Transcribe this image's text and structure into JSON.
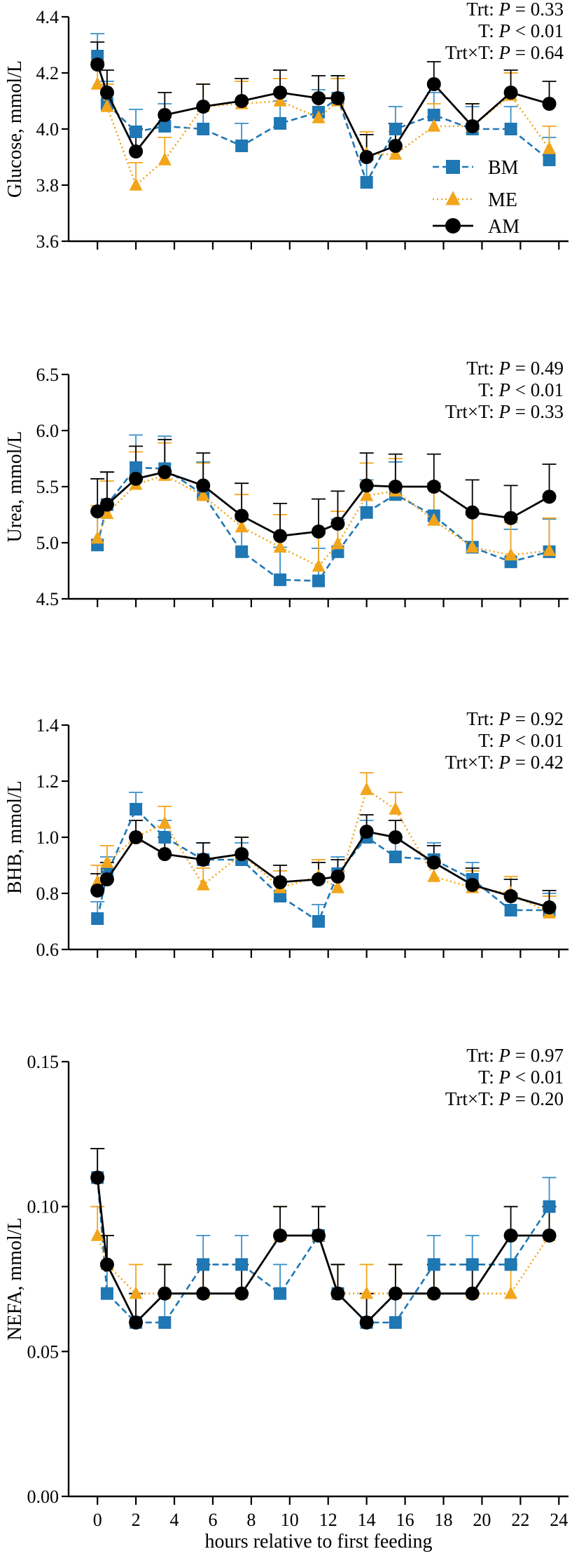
{
  "figure_xlabel": "hours relative to first feeding",
  "x_ticks": [
    "0",
    "2",
    "4",
    "6",
    "8",
    "10",
    "12",
    "14",
    "16",
    "18",
    "20",
    "22",
    "24"
  ],
  "legend": {
    "BM": "BM",
    "ME": "ME",
    "AM": "AM"
  },
  "colors": {
    "BM": "#1f77b4",
    "ME": "#f2a51a",
    "AM": "#000000",
    "BM_err": "#3a8fc9",
    "ME_err": "#f2a51a",
    "AM_err": "#000000"
  },
  "chart_data": [
    {
      "type": "line",
      "ylabel": "Glucose, mmol/L",
      "ylim": [
        3.6,
        4.4
      ],
      "yticks": [
        "3.6",
        "3.8",
        "4.0",
        "4.2",
        "4.4"
      ],
      "stats": [
        {
          "label": "Trt: ",
          "P": "P",
          "value": " = 0.33"
        },
        {
          "label": "T: ",
          "P": "P",
          "value": " < 0.01"
        },
        {
          "label": "Trt×T: ",
          "P": "P",
          "value": " = 0.64"
        }
      ],
      "x": [
        0,
        0.5,
        2,
        3.5,
        5.5,
        7.5,
        9.5,
        11.5,
        12.5,
        14,
        15.5,
        17.5,
        19.5,
        21.5,
        23.5
      ],
      "series": [
        {
          "name": "BM",
          "values": [
            4.26,
            4.09,
            3.99,
            4.01,
            4.0,
            3.94,
            4.02,
            4.06,
            4.11,
            3.81,
            4.0,
            4.05,
            4.0,
            4.0,
            3.89
          ],
          "err": [
            0.08,
            0.08,
            0.08,
            0.08,
            0.08,
            0.08,
            0.08,
            0.08,
            0.08,
            0.08,
            0.08,
            0.08,
            0.08,
            0.08,
            0.08
          ]
        },
        {
          "name": "ME",
          "values": [
            4.16,
            4.08,
            3.8,
            3.89,
            4.08,
            4.09,
            4.1,
            4.04,
            4.1,
            3.91,
            3.91,
            4.01,
            4.01,
            4.12,
            3.93
          ],
          "err": [
            0.08,
            0.08,
            0.08,
            0.08,
            0.08,
            0.08,
            0.08,
            0.08,
            0.08,
            0.08,
            0.08,
            0.08,
            0.08,
            0.08,
            0.08
          ]
        },
        {
          "name": "AM",
          "values": [
            4.23,
            4.13,
            3.92,
            4.05,
            4.08,
            4.1,
            4.13,
            4.11,
            4.11,
            3.9,
            3.94,
            4.16,
            4.01,
            4.13,
            4.09
          ],
          "err": [
            0.08,
            0.08,
            0.08,
            0.08,
            0.08,
            0.08,
            0.08,
            0.08,
            0.08,
            0.08,
            0.08,
            0.08,
            0.08,
            0.08,
            0.08
          ]
        }
      ]
    },
    {
      "type": "line",
      "ylabel": "Urea, mmol/L",
      "ylim": [
        4.5,
        6.5
      ],
      "yticks": [
        "4.5",
        "5.0",
        "5.5",
        "6.0",
        "6.5"
      ],
      "stats": [
        {
          "label": "Trt: ",
          "P": "P",
          "value": " = 0.49"
        },
        {
          "label": "T: ",
          "P": "P",
          "value": " < 0.01"
        },
        {
          "label": "Trt×T: ",
          "P": "P",
          "value": " = 0.33"
        }
      ],
      "x": [
        0,
        0.5,
        2,
        3.5,
        5.5,
        7.5,
        9.5,
        11.5,
        12.5,
        14,
        15.5,
        17.5,
        19.5,
        21.5,
        23.5
      ],
      "series": [
        {
          "name": "BM",
          "values": [
            4.98,
            5.34,
            5.67,
            5.66,
            5.43,
            4.92,
            4.67,
            4.66,
            4.92,
            5.27,
            5.43,
            5.24,
            4.96,
            4.83,
            4.92
          ],
          "err": [
            0.29,
            0.29,
            0.29,
            0.29,
            0.29,
            0.29,
            0.29,
            0.29,
            0.29,
            0.29,
            0.29,
            0.29,
            0.29,
            0.29,
            0.29
          ]
        },
        {
          "name": "ME",
          "values": [
            5.04,
            5.26,
            5.52,
            5.6,
            5.42,
            5.14,
            4.96,
            4.79,
            4.99,
            5.42,
            5.46,
            5.2,
            4.96,
            4.89,
            4.93
          ],
          "err": [
            0.29,
            0.29,
            0.29,
            0.29,
            0.29,
            0.29,
            0.29,
            0.29,
            0.29,
            0.29,
            0.29,
            0.29,
            0.29,
            0.29,
            0.29
          ]
        },
        {
          "name": "AM",
          "values": [
            5.28,
            5.34,
            5.57,
            5.63,
            5.51,
            5.24,
            5.06,
            5.1,
            5.17,
            5.51,
            5.5,
            5.5,
            5.27,
            5.22,
            5.41
          ],
          "err": [
            0.29,
            0.29,
            0.29,
            0.29,
            0.29,
            0.29,
            0.29,
            0.29,
            0.29,
            0.29,
            0.29,
            0.29,
            0.29,
            0.29,
            0.29
          ]
        }
      ]
    },
    {
      "type": "line",
      "ylabel": "BHB, mmol/L",
      "ylim": [
        0.6,
        1.4
      ],
      "yticks": [
        "0.6",
        "0.8",
        "1.0",
        "1.2",
        "1.4"
      ],
      "stats": [
        {
          "label": "Trt: ",
          "P": "P",
          "value": " = 0.92"
        },
        {
          "label": "T: ",
          "P": "P",
          "value": " < 0.01"
        },
        {
          "label": "Trt×T: ",
          "P": "P",
          "value": " = 0.42"
        }
      ],
      "x": [
        0,
        0.5,
        2,
        3.5,
        5.5,
        7.5,
        9.5,
        11.5,
        12.5,
        14,
        15.5,
        17.5,
        19.5,
        21.5,
        23.5
      ],
      "series": [
        {
          "name": "BM",
          "values": [
            0.71,
            0.87,
            1.1,
            1.0,
            0.92,
            0.92,
            0.79,
            0.7,
            0.87,
            1.0,
            0.93,
            0.92,
            0.85,
            0.74,
            0.74
          ],
          "err": [
            0.06,
            0.06,
            0.06,
            0.06,
            0.06,
            0.06,
            0.06,
            0.06,
            0.06,
            0.06,
            0.06,
            0.06,
            0.06,
            0.06,
            0.06
          ]
        },
        {
          "name": "ME",
          "values": [
            0.84,
            0.91,
            1.0,
            1.05,
            0.83,
            0.94,
            0.82,
            0.86,
            0.82,
            1.17,
            1.1,
            0.86,
            0.82,
            0.8,
            0.73
          ],
          "err": [
            0.06,
            0.06,
            0.06,
            0.06,
            0.06,
            0.06,
            0.06,
            0.06,
            0.06,
            0.06,
            0.06,
            0.06,
            0.06,
            0.06,
            0.06
          ]
        },
        {
          "name": "AM",
          "values": [
            0.81,
            0.85,
            1.0,
            0.94,
            0.92,
            0.94,
            0.84,
            0.85,
            0.86,
            1.02,
            1.0,
            0.91,
            0.83,
            0.79,
            0.75
          ],
          "err": [
            0.06,
            0.06,
            0.06,
            0.06,
            0.06,
            0.06,
            0.06,
            0.06,
            0.06,
            0.06,
            0.06,
            0.06,
            0.06,
            0.06,
            0.06
          ]
        }
      ]
    },
    {
      "type": "line",
      "ylabel": "NEFA, mmol/L",
      "ylim": [
        0.0,
        0.15
      ],
      "yticks": [
        "0.00",
        "0.05",
        "0.10",
        "0.15"
      ],
      "stats": [
        {
          "label": "Trt: ",
          "P": "P",
          "value": " = 0.97"
        },
        {
          "label": "T: ",
          "P": "P",
          "value": " < 0.01"
        },
        {
          "label": "Trt×T: ",
          "P": "P",
          "value": " = 0.20"
        }
      ],
      "x": [
        0,
        0.5,
        2,
        3.5,
        5.5,
        7.5,
        9.5,
        11.5,
        12.5,
        14,
        15.5,
        17.5,
        19.5,
        21.5,
        23.5
      ],
      "series": [
        {
          "name": "BM",
          "values": [
            0.11,
            0.07,
            0.06,
            0.06,
            0.08,
            0.08,
            0.07,
            0.09,
            0.07,
            0.06,
            0.06,
            0.08,
            0.08,
            0.08,
            0.1
          ],
          "err": [
            0.01,
            0.01,
            0.01,
            0.01,
            0.01,
            0.01,
            0.01,
            0.01,
            0.01,
            0.01,
            0.01,
            0.01,
            0.01,
            0.01,
            0.01
          ]
        },
        {
          "name": "ME",
          "values": [
            0.09,
            0.08,
            0.07,
            0.07,
            0.07,
            0.07,
            0.09,
            0.09,
            0.07,
            0.07,
            0.07,
            0.07,
            0.07,
            0.07,
            0.09
          ],
          "err": [
            0.01,
            0.01,
            0.01,
            0.01,
            0.01,
            0.01,
            0.01,
            0.01,
            0.01,
            0.01,
            0.01,
            0.01,
            0.01,
            0.01,
            0.01
          ]
        },
        {
          "name": "AM",
          "values": [
            0.11,
            0.08,
            0.06,
            0.07,
            0.07,
            0.07,
            0.09,
            0.09,
            0.07,
            0.06,
            0.07,
            0.07,
            0.07,
            0.09,
            0.09
          ],
          "err": [
            0.01,
            0.01,
            0.01,
            0.01,
            0.01,
            0.01,
            0.01,
            0.01,
            0.01,
            0.01,
            0.01,
            0.01,
            0.01,
            0.01,
            0.01
          ]
        }
      ]
    }
  ]
}
